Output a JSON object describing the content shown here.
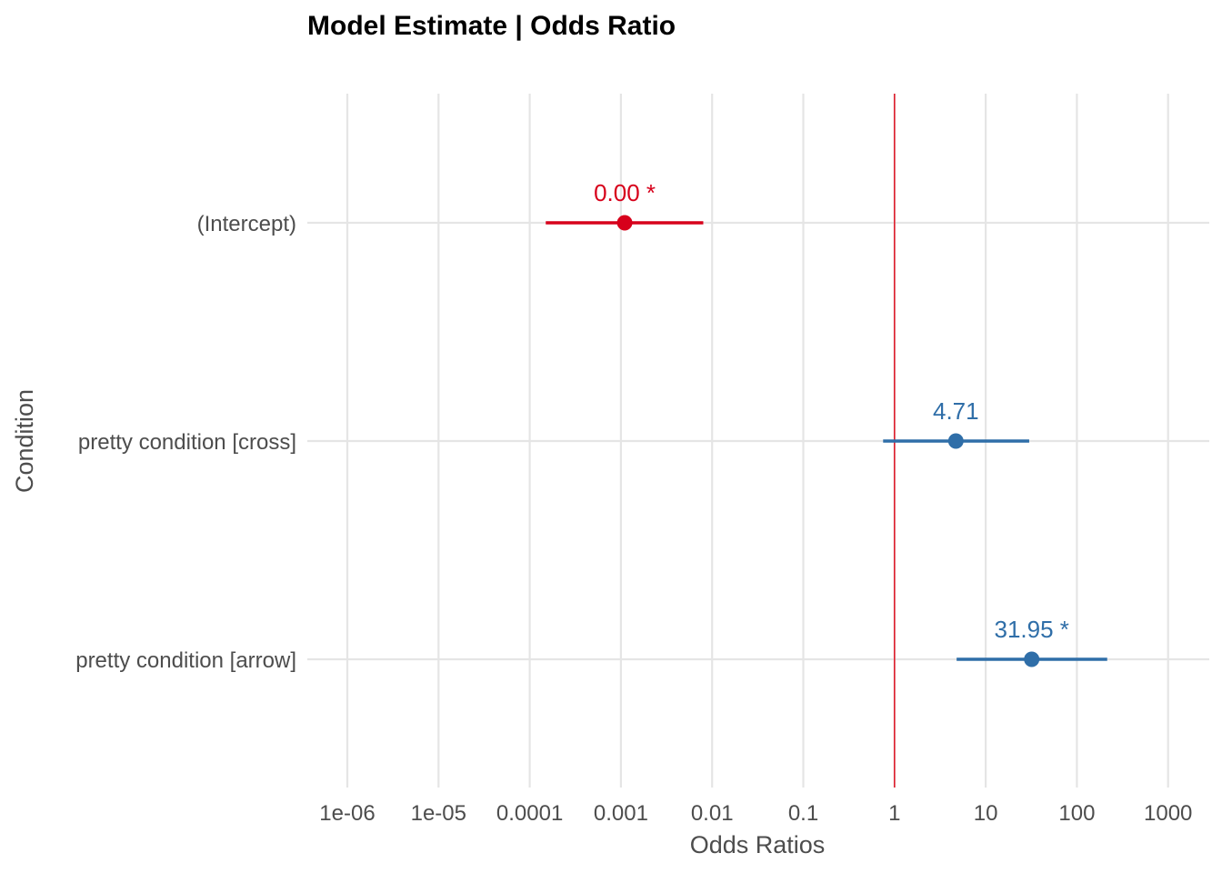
{
  "chart_data": {
    "type": "scatter",
    "title": "Model Estimate | Odds Ratio",
    "xlabel": "Odds Ratios",
    "ylabel": "Condition",
    "x_scale": "log10",
    "xlim": [
      1e-06,
      1000
    ],
    "x_ticks": [
      "1e-06",
      "1e-05",
      "0.0001",
      "0.001",
      "0.01",
      "0.1",
      "1",
      "10",
      "100",
      "1000"
    ],
    "x_tick_values": [
      1e-06,
      1e-05,
      0.0001,
      0.001,
      0.01,
      0.1,
      1,
      10,
      100,
      1000
    ],
    "reference_line": 1,
    "grid": true,
    "colors": {
      "significant_negative": "#d7001b",
      "positive": "#2f6ea8",
      "reference_line": "#e0202e",
      "grid": "#e5e5e5"
    },
    "terms": [
      {
        "label": "(Intercept)",
        "estimate": 0.0011,
        "ci_low": 0.00015,
        "ci_high": 0.008,
        "value_label": "0.00 *",
        "color": "#d7001b"
      },
      {
        "label": "pretty condition [cross]",
        "estimate": 4.71,
        "ci_low": 0.75,
        "ci_high": 30,
        "value_label": "4.71",
        "color": "#2f6ea8"
      },
      {
        "label": "pretty condition [arrow]",
        "estimate": 31.95,
        "ci_low": 4.8,
        "ci_high": 215,
        "value_label": "31.95 *",
        "color": "#2f6ea8"
      }
    ]
  }
}
